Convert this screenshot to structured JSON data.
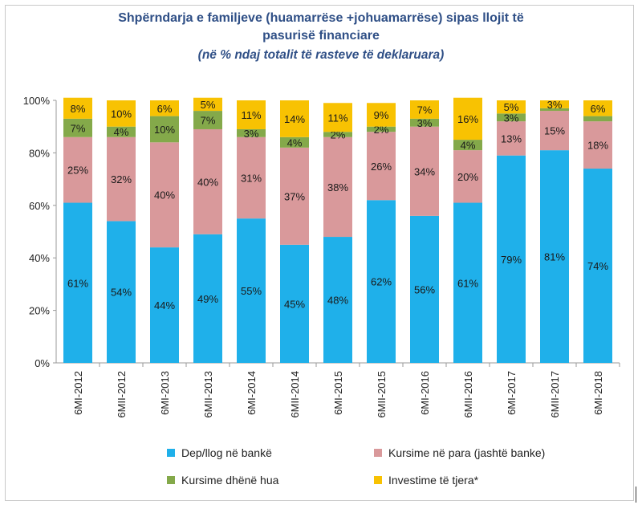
{
  "title_line1": "Shpërndarja  e familjeve (huamarrëse +johuamarrëse) sipas llojit të",
  "title_line2": "pasurisë  financiare",
  "subtitle": "(në % ndaj totalit të rasteve të deklaruara)",
  "chart_data": {
    "type": "bar",
    "stacked": true,
    "categories": [
      "6MI-2012",
      "6MII-2012",
      "6MI-2013",
      "6MII-2013",
      "6MI-2014",
      "6MII-2014",
      "6MI-2015",
      "6MII-2015",
      "6MI-2016",
      "6MII-2016",
      "6MI-2017",
      "6MII-2017",
      "6MI-2018"
    ],
    "yticks": [
      "0%",
      "20%",
      "40%",
      "60%",
      "80%",
      "100%"
    ],
    "ylim": [
      0,
      100
    ],
    "series": [
      {
        "name": "Dep/llog në bankë",
        "color": "#1fb0ea",
        "values": [
          61,
          54,
          44,
          49,
          55,
          45,
          48,
          62,
          56,
          61,
          79,
          81,
          74
        ],
        "labels": [
          "61%",
          "54%",
          "44%",
          "49%",
          "55%",
          "45%",
          "48%",
          "62%",
          "56%",
          "61%",
          "79%",
          "81%",
          "74%"
        ]
      },
      {
        "name": "Kursime në para (jashtë banke)",
        "color": "#d9999b",
        "values": [
          25,
          32,
          40,
          40,
          31,
          37,
          38,
          26,
          34,
          20,
          13,
          15,
          18
        ],
        "labels": [
          "25%",
          "32%",
          "40%",
          "40%",
          "31%",
          "37%",
          "38%",
          "26%",
          "34%",
          "20%",
          "13%",
          "15%",
          "18%"
        ]
      },
      {
        "name": "Kursime dhënë hua",
        "color": "#84a94a",
        "values": [
          7,
          4,
          10,
          7,
          3,
          4,
          2,
          2,
          3,
          4,
          3,
          1,
          2
        ],
        "labels": [
          "7%",
          "4%",
          "10%",
          "7%",
          "3%",
          "4%",
          "2%",
          "2%",
          "3%",
          "4%",
          "3%",
          "",
          ""
        ]
      },
      {
        "name": "Investime të tjera*",
        "color": "#f8c202",
        "values": [
          8,
          10,
          6,
          5,
          11,
          14,
          11,
          9,
          7,
          16,
          5,
          3,
          6
        ],
        "labels": [
          "8%",
          "10%",
          "6%",
          "5%",
          "11%",
          "14%",
          "11%",
          "9%",
          "7%",
          "16%",
          "5%",
          "3%",
          "6%"
        ]
      }
    ],
    "grid": false,
    "legend_position": "bottom"
  }
}
